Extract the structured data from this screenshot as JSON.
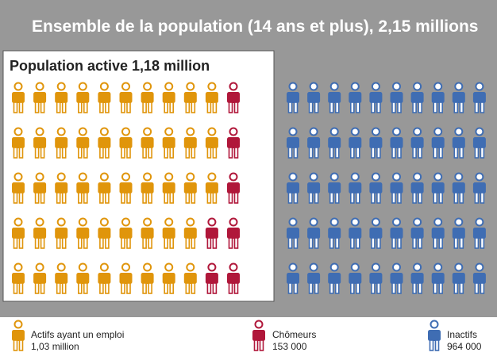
{
  "header": {
    "title": "Ensemble de la population (14 ans et plus), 2,15 millions",
    "subtitle": "Population active 1,18 million"
  },
  "colors": {
    "background_gray": "#989898",
    "active_box": "#ffffff",
    "employed": "#e0950b",
    "unemployed": "#b0173a",
    "inactive": "#3f6db3",
    "title_text": "#ffffff",
    "label_text": "#222222"
  },
  "chart_data": {
    "type": "pictogram",
    "title": "Ensemble de la population (14 ans et plus), 2,15 millions",
    "subtitle": "Population active 1,18 million",
    "grid": {
      "rows": 5,
      "columns": 21
    },
    "series": [
      {
        "name": "Actifs ayant un emploi",
        "value_label": "1,03 million",
        "icons": 48,
        "color": "#e0950b"
      },
      {
        "name": "Chômeurs",
        "value_label": "153 000",
        "icons": 7,
        "color": "#b0173a"
      },
      {
        "name": "Inactifs",
        "value_label": "964 000",
        "icons": 50,
        "color": "#3f6db3"
      }
    ]
  },
  "legend": [
    {
      "label": "Actifs ayant un emploi",
      "value": "1,03 million",
      "icon": "person-icon"
    },
    {
      "label": "Chômeurs",
      "value": "153 000",
      "icon": "person-icon"
    },
    {
      "label": "Inactifs",
      "value": "964 000",
      "icon": "person-icon"
    }
  ]
}
